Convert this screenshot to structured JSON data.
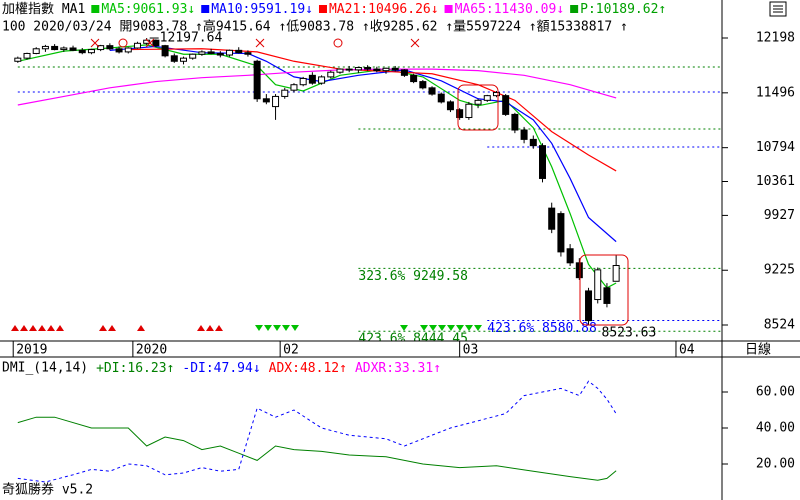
{
  "chart_data": [
    {
      "type": "candlestick",
      "title": "加權指數 MA1",
      "info": "100 2020/03/24 開9083.78 ↑高9415.64 ↑低9083.78 ↑收9285.62 ↑量5597224 ↑額15338817 ↑",
      "period": "日線",
      "indicator": {
        "name": "P:10189.62",
        "trend": "↑",
        "color": "#00a000"
      },
      "open": [
        11900,
        11940,
        12000,
        12060,
        12090,
        12050,
        12070,
        12040,
        12010,
        12050,
        12100,
        12060,
        12020,
        12070,
        12130,
        12170,
        12100,
        11970,
        11900,
        11940,
        11990,
        12020,
        12000,
        11980,
        12040,
        12010,
        11900,
        11420,
        11320,
        11450,
        11530,
        11600,
        11720,
        11620,
        11700,
        11760,
        11800,
        11790,
        11820,
        11800,
        11780,
        11810,
        11790,
        11720,
        11640,
        11560,
        11480,
        11380,
        11280,
        11180,
        11350,
        11400,
        11460,
        11460,
        11220,
        11020,
        10900,
        10820,
        10020,
        9950,
        9500,
        9320,
        8960,
        8850,
        9000,
        9083.78
      ],
      "high": [
        11960,
        12010,
        12080,
        12110,
        12120,
        12090,
        12100,
        12070,
        12060,
        12110,
        12130,
        12090,
        12080,
        12150,
        12197.64,
        12180,
        12110,
        12000,
        11960,
        12000,
        12040,
        12060,
        12030,
        12050,
        12080,
        12040,
        11920,
        11480,
        11480,
        11560,
        11620,
        11700,
        11760,
        11720,
        11780,
        11810,
        11840,
        11830,
        11850,
        11830,
        11820,
        11840,
        11800,
        11740,
        11660,
        11580,
        11500,
        11400,
        11300,
        11380,
        11420,
        11470,
        11520,
        11480,
        11240,
        11060,
        10950,
        10850,
        10090,
        9980,
        9560,
        9380,
        9000,
        9260,
        9060,
        9415.64
      ],
      "low": [
        11880,
        11920,
        11990,
        12020,
        12040,
        12020,
        12030,
        11990,
        11990,
        12030,
        12040,
        12000,
        12000,
        12060,
        12110,
        12080,
        11950,
        11880,
        11860,
        11920,
        11970,
        11990,
        11950,
        11960,
        12000,
        11960,
        11380,
        11350,
        11150,
        11420,
        11500,
        11580,
        11600,
        11600,
        11680,
        11740,
        11760,
        11750,
        11780,
        11760,
        11740,
        11770,
        11700,
        11620,
        11540,
        11460,
        11360,
        11250,
        11150,
        11150,
        11300,
        11380,
        11440,
        11200,
        10980,
        10850,
        10780,
        10350,
        9700,
        9400,
        9280,
        9100,
        8523.63,
        8800,
        8750,
        9083.78
      ],
      "close": [
        11940,
        12000,
        12060,
        12090,
        12050,
        12070,
        12040,
        12010,
        12050,
        12100,
        12060,
        12020,
        12070,
        12130,
        12170,
        12100,
        11970,
        11900,
        11940,
        11990,
        12020,
        12000,
        11980,
        12040,
        12010,
        11990,
        11420,
        11380,
        11450,
        11530,
        11600,
        11680,
        11620,
        11700,
        11760,
        11800,
        11790,
        11820,
        11800,
        11780,
        11810,
        11790,
        11720,
        11640,
        11560,
        11480,
        11380,
        11280,
        11180,
        11350,
        11400,
        11460,
        11500,
        11220,
        11020,
        10900,
        10820,
        10400,
        9750,
        9460,
        9320,
        9130,
        8580,
        9230,
        8800,
        9285.62
      ],
      "series": [
        {
          "name": "MA5:9061.93",
          "trend": "↓",
          "color": "#00c000",
          "x": [
            0,
            5,
            10,
            14,
            18,
            22,
            26,
            28,
            31,
            35,
            40,
            44,
            48,
            50,
            53,
            56,
            58,
            60,
            62,
            64,
            65
          ],
          "values": [
            11900,
            12030,
            12070,
            12110,
            11990,
            11990,
            11840,
            11600,
            11520,
            11720,
            11800,
            11700,
            11400,
            11330,
            11400,
            11050,
            10550,
            9950,
            9300,
            9000,
            9061.93
          ]
        },
        {
          "name": "MA10:9591.19",
          "trend": "↓",
          "color": "#0000ff",
          "x": [
            10,
            15,
            20,
            25,
            27,
            30,
            33,
            37,
            42,
            46,
            50,
            53,
            56,
            58,
            60,
            62,
            65
          ],
          "values": [
            12040,
            12090,
            12010,
            12000,
            11900,
            11700,
            11640,
            11720,
            11790,
            11650,
            11420,
            11380,
            11150,
            10850,
            10400,
            9900,
            9591.19
          ]
        },
        {
          "name": "MA21:10496.26",
          "trend": "↓",
          "color": "#ff0000",
          "x": [
            12,
            20,
            26,
            30,
            35,
            40,
            45,
            50,
            54,
            58,
            62,
            65
          ],
          "values": [
            12050,
            12060,
            12020,
            11900,
            11800,
            11770,
            11740,
            11600,
            11400,
            11000,
            10700,
            10496.26
          ]
        },
        {
          "name": "MA65:11430.09",
          "trend": "↓",
          "color": "#ff00ff",
          "x": [
            0,
            5,
            10,
            15,
            20,
            25,
            30,
            35,
            40,
            45,
            50,
            55,
            60,
            65
          ],
          "values": [
            11340,
            11450,
            11560,
            11640,
            11690,
            11720,
            11760,
            11790,
            11800,
            11800,
            11780,
            11720,
            11600,
            11430.09
          ]
        }
      ],
      "xlim": [
        -1.5,
        76.5
      ],
      "xticks": [
        {
          "value": -0.5,
          "label": "2019"
        },
        {
          "value": 12.5,
          "label": "2020"
        },
        {
          "value": 28.5,
          "label": "02"
        },
        {
          "value": 48,
          "label": "03"
        },
        {
          "value": 71.5,
          "label": "04"
        }
      ],
      "ylim": [
        8332,
        12454
      ],
      "yticks": [
        12198,
        11496,
        10794,
        10361,
        9927,
        9225,
        8524
      ],
      "levels": [
        {
          "value": 11827,
          "color": "#008000",
          "start": 0
        },
        {
          "value": 11507,
          "color": "#0000ff",
          "start": 0
        },
        {
          "value": 11033,
          "color": "#008000",
          "start": 37
        },
        {
          "value": 10803,
          "color": "#0000ff",
          "start": 51
        },
        {
          "value": 9249.58,
          "color": "#008000",
          "start": 37,
          "label": "323.6% 9249.58"
        },
        {
          "value": 8580.88,
          "color": "#0000ff",
          "start": 51,
          "label": "423.6% 8580.88"
        },
        {
          "value": 8444.45,
          "color": "#008000",
          "start": 37,
          "label": "423.6% 8444.45"
        }
      ],
      "annotations": [
        {
          "label": "12197.64",
          "index": 14,
          "value": 12197.64
        },
        {
          "label": "8523.63",
          "index": 62,
          "value": 8523.63
        }
      ]
    },
    {
      "type": "line",
      "title": "DMI_(14,14)",
      "series": [
        {
          "name": "+DI:16.23",
          "trend": "↑",
          "color": "#008000",
          "dashed": false,
          "x": [
            0,
            2,
            4,
            8,
            12,
            14,
            16,
            18,
            20,
            22,
            24,
            26,
            28,
            30,
            33,
            36,
            40,
            44,
            48,
            52,
            56,
            60,
            63,
            64,
            65
          ],
          "values": [
            43,
            46,
            46,
            40,
            40,
            30,
            35,
            33,
            28,
            30,
            26,
            22,
            30,
            28,
            27,
            25,
            24,
            20,
            18,
            19,
            16,
            13,
            11,
            12,
            16.23
          ]
        },
        {
          "name": "-DI:47.94",
          "trend": "↓",
          "color": "#0000ff",
          "dashed": true,
          "x": [
            0,
            3,
            6,
            8,
            10,
            12,
            14,
            16,
            18,
            20,
            22,
            24,
            26,
            28,
            30,
            33,
            36,
            40,
            42,
            44,
            47,
            50,
            53,
            55,
            57,
            59,
            61,
            62,
            63,
            64,
            65
          ],
          "values": [
            12,
            10,
            14,
            17,
            16,
            20,
            19,
            14,
            15,
            18,
            16,
            17,
            51,
            46,
            50,
            40,
            36,
            34,
            30,
            34,
            40,
            44,
            48,
            58,
            60,
            62,
            58,
            66,
            62,
            56,
            47.94
          ]
        },
        {
          "name": "ADX:48.12",
          "trend": "↑",
          "color": "#ff0000"
        },
        {
          "name": "ADXR:33.31",
          "trend": "↑",
          "color": "#ff00ff"
        }
      ],
      "xlim": [
        -1.5,
        76.5
      ],
      "ylim": [
        10,
        80
      ],
      "yticks": [
        {
          "value": 60,
          "label": "60.00"
        },
        {
          "value": 40,
          "label": "40.00"
        },
        {
          "value": 20,
          "label": "20.00"
        }
      ]
    }
  ],
  "footer": "奇狐勝券 v5.2"
}
